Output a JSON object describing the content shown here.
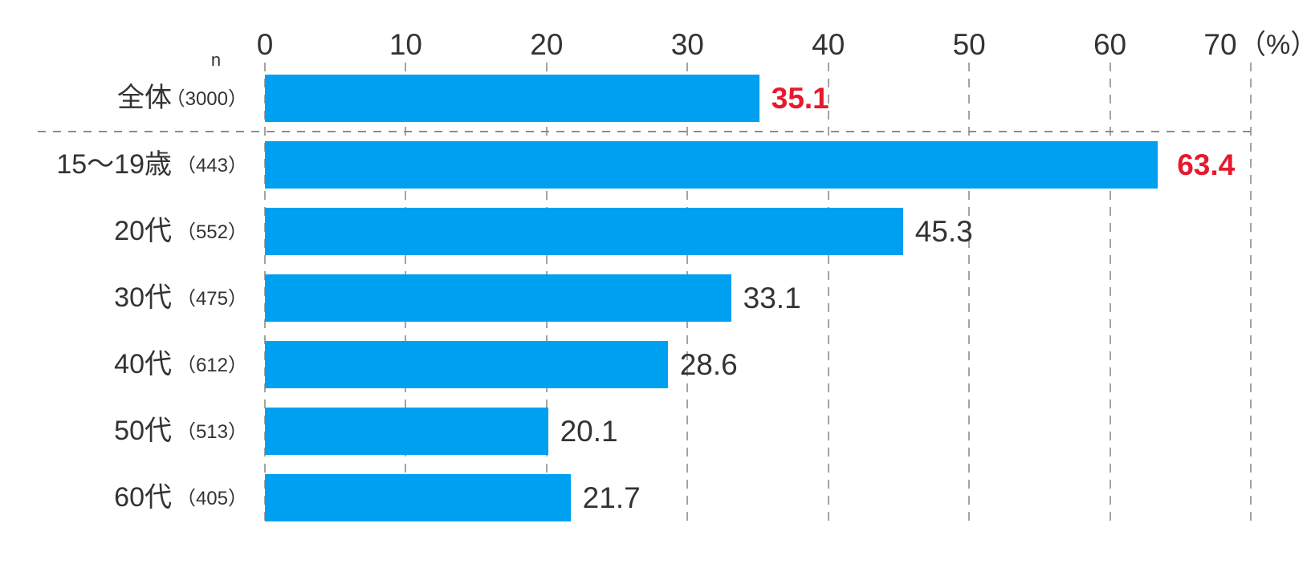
{
  "chart_data": {
    "type": "bar",
    "orientation": "horizontal",
    "title": "",
    "n_header": "n",
    "unit_label": "（%）",
    "xlabel": "",
    "ylabel": "",
    "xlim": [
      0,
      70
    ],
    "ticks": [
      0,
      10,
      20,
      30,
      40,
      50,
      60,
      70
    ],
    "grid": "dashed-vertical",
    "legend": "none",
    "categories": [
      "全体",
      "15〜19歳",
      "20代",
      "30代",
      "40代",
      "50代",
      "60代"
    ],
    "n_values": [
      "（3000）",
      "（443）",
      "（552）",
      "（475）",
      "（612）",
      "（513）",
      "（405）"
    ],
    "values": [
      35.1,
      63.4,
      45.3,
      33.1,
      28.6,
      20.1,
      21.7
    ],
    "value_labels": [
      "35.1",
      "63.4",
      "45.3",
      "33.1",
      "28.6",
      "20.1",
      "21.7"
    ],
    "highlighted": [
      true,
      true,
      false,
      false,
      false,
      false,
      false
    ],
    "separator_after_index": 0,
    "colors": {
      "bar": "#00a0f0",
      "value_highlight": "#e6192d",
      "text": "#333333",
      "gridline": "#a3a3a3",
      "separator": "#8c8c8c",
      "background": "#ffffff"
    }
  }
}
